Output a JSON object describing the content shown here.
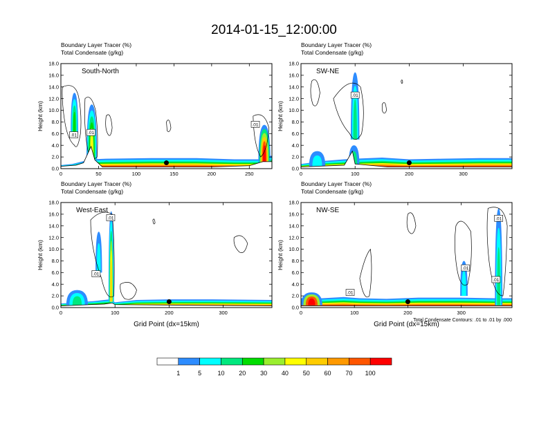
{
  "title": "2014-01-15_12:00:00",
  "left_title_line1": "Boundary Layer Tracer   (%)",
  "left_title_line2": "Total Condensate   (g/kg)",
  "xlabel": "Grid Point (dx=15km)",
  "ylabel": "Height (km)",
  "contour_note": "Total Condensate Contours: .01 to .01 by .000",
  "colors": {
    "tracer": [
      "#ffffff",
      "#2d8cff",
      "#00ffff",
      "#00e87e",
      "#00dd00",
      "#9aee2e",
      "#ffff00",
      "#ffcc00",
      "#ff9900",
      "#ff5500",
      "#ff0000"
    ]
  },
  "chart_data": [
    {
      "type": "heatmap",
      "label": "South-North",
      "title": [
        "Boundary Layer Tracer   (%)",
        "Total Condensate   (g/kg)"
      ],
      "xlabel": "",
      "ylabel": "Height (km)",
      "xlim": [
        0,
        280
      ],
      "ylim": [
        0,
        18
      ],
      "xticks": [
        0,
        50,
        100,
        150,
        200,
        250
      ],
      "yticks": [
        0.0,
        2.0,
        4.0,
        6.0,
        8.0,
        10.0,
        12.0,
        14.0,
        16.0,
        18.0
      ],
      "terrain": [
        [
          0,
          0.4
        ],
        [
          20,
          0.6
        ],
        [
          30,
          1.0
        ],
        [
          40,
          3.8
        ],
        [
          45,
          1.5
        ],
        [
          55,
          0.3
        ],
        [
          100,
          0.3
        ],
        [
          140,
          0.3
        ],
        [
          200,
          0.3
        ],
        [
          250,
          0.5
        ],
        [
          268,
          1.2
        ],
        [
          280,
          1.2
        ]
      ],
      "contour_labels": [
        {
          "x": 17,
          "y": 5.8,
          "text": ".01"
        },
        {
          "x": 40,
          "y": 6.2,
          "text": ".01"
        },
        {
          "x": 258,
          "y": 7.6,
          "text": ".01"
        }
      ],
      "site_marker": {
        "x": 140,
        "y": 1.0
      }
    },
    {
      "type": "heatmap",
      "label": "SW-NE",
      "title": [
        "Boundary Layer Tracer   (%)",
        "Total Condensate   (g/kg)"
      ],
      "xlabel": "",
      "ylabel": "Height (km)",
      "xlim": [
        0,
        390
      ],
      "ylim": [
        0,
        18
      ],
      "xticks": [
        0,
        100,
        200,
        300
      ],
      "yticks": [
        0.0,
        2.0,
        4.0,
        6.0,
        8.0,
        10.0,
        12.0,
        14.0,
        16.0,
        18.0
      ],
      "terrain": [
        [
          0,
          0.3
        ],
        [
          80,
          0.6
        ],
        [
          95,
          3.0
        ],
        [
          100,
          0.8
        ],
        [
          160,
          0.3
        ],
        [
          390,
          0.3
        ]
      ],
      "contour_labels": [
        {
          "x": 100,
          "y": 12.6,
          "text": ".01"
        }
      ],
      "site_marker": {
        "x": 200,
        "y": 1.0
      }
    },
    {
      "type": "heatmap",
      "label": "West-East",
      "title": [
        "Boundary Layer Tracer   (%)",
        "Total Condensate   (g/kg)"
      ],
      "xlabel": "Grid Point (dx=15km)",
      "ylabel": "Height (km)",
      "xlim": [
        0,
        390
      ],
      "ylim": [
        0,
        18
      ],
      "xticks": [
        0,
        100,
        200,
        300
      ],
      "yticks": [
        0.0,
        2.0,
        4.0,
        6.0,
        8.0,
        10.0,
        12.0,
        14.0,
        16.0,
        18.0
      ],
      "terrain": [
        [
          0,
          0.3
        ],
        [
          80,
          0.6
        ],
        [
          95,
          0.8
        ],
        [
          100,
          0.5
        ],
        [
          390,
          0.3
        ]
      ],
      "contour_labels": [
        {
          "x": 92,
          "y": 15.4,
          "text": ".01"
        },
        {
          "x": 65,
          "y": 5.8,
          "text": ".01"
        }
      ],
      "site_marker": {
        "x": 200,
        "y": 1.0
      }
    },
    {
      "type": "heatmap",
      "label": "NW-SE",
      "title": [
        "Boundary Layer Tracer   (%)",
        "Total Condensate   (g/kg)"
      ],
      "xlabel": "Grid Point (dx=15km)",
      "ylabel": "",
      "xlim": [
        0,
        395
      ],
      "ylim": [
        0,
        18
      ],
      "xticks": [
        0,
        100,
        200,
        300
      ],
      "yticks": [
        0.0,
        2.0,
        4.0,
        6.0,
        8.0,
        10.0,
        12.0,
        14.0,
        16.0,
        18.0
      ],
      "terrain": [
        [
          0,
          0.3
        ],
        [
          395,
          0.3
        ]
      ],
      "contour_labels": [
        {
          "x": 92,
          "y": 2.6,
          "text": ".01"
        },
        {
          "x": 308,
          "y": 6.8,
          "text": ".01"
        },
        {
          "x": 365,
          "y": 4.8,
          "text": ".01"
        },
        {
          "x": 370,
          "y": 15.3,
          "text": ".01"
        }
      ],
      "site_marker": {
        "x": 200,
        "y": 1.0
      }
    },
    {
      "type": "colorbar",
      "levels": [
        "1",
        "5",
        "10",
        "20",
        "30",
        "40",
        "50",
        "60",
        "70",
        "100"
      ]
    }
  ]
}
